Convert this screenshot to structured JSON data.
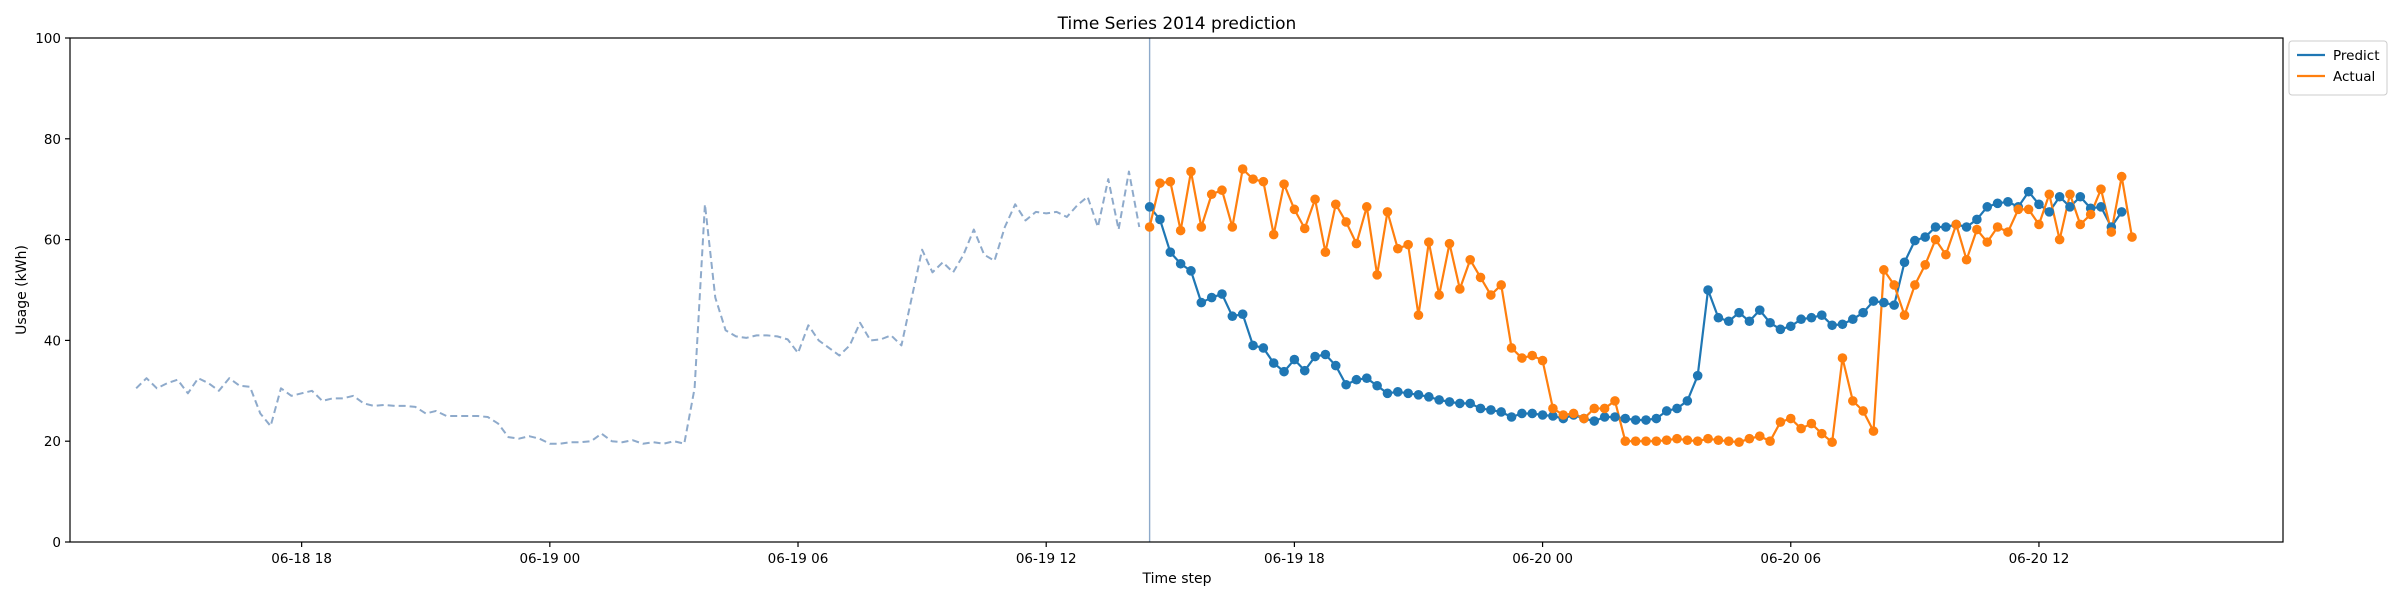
{
  "chart_data": {
    "type": "line",
    "title": "Time Series 2014 prediction",
    "xlabel": "Time step",
    "ylabel": "Usage (kWh)",
    "ylim": [
      0,
      100
    ],
    "yticks": [
      0,
      20,
      40,
      60,
      80,
      100
    ],
    "xlim": [
      "2014-06-18 12:24",
      "2014-06-20 17:54"
    ],
    "xticks": [
      {
        "label": "06-18 18",
        "t": "2014-06-18 18:00"
      },
      {
        "label": "06-19 00",
        "t": "2014-06-19 00:00"
      },
      {
        "label": "06-19 06",
        "t": "2014-06-19 06:00"
      },
      {
        "label": "06-19 12",
        "t": "2014-06-19 12:00"
      },
      {
        "label": "06-19 18",
        "t": "2014-06-19 18:00"
      },
      {
        "label": "06-20 00",
        "t": "2014-06-20 00:00"
      },
      {
        "label": "06-20 06",
        "t": "2014-06-20 06:00"
      },
      {
        "label": "06-20 12",
        "t": "2014-06-20 12:00"
      }
    ],
    "grid": false,
    "legend_position": "outside top-right",
    "forecast_start": "2014-06-19 14:30",
    "series": [
      {
        "name": "",
        "style": "dashed",
        "color": "#8eaacb",
        "start": "2014-06-18 14:00",
        "step_minutes": 15,
        "values": [
          30.5,
          32.5,
          30.5,
          31.5,
          32.2,
          29.5,
          32.5,
          31.5,
          30,
          32.5,
          31,
          30.8,
          25.5,
          23,
          30.5,
          29,
          29.5,
          30,
          28,
          28.5,
          28.5,
          29,
          27.5,
          27,
          27.2,
          27,
          27,
          26.8,
          25.5,
          26,
          25,
          25,
          25,
          25,
          24.8,
          23.5,
          20.8,
          20.5,
          21,
          20.5,
          19.5,
          19.5,
          19.8,
          19.8,
          20,
          21.5,
          20,
          19.8,
          20.2,
          19.5,
          19.8,
          19.5,
          20,
          19.5,
          30.5,
          67,
          48.5,
          42,
          40.8,
          40.5,
          41,
          41,
          40.8,
          40.2,
          37.5,
          43,
          40,
          38.5,
          37,
          39,
          43.5,
          40,
          40.2,
          41,
          39,
          48.5,
          58,
          53.5,
          55.5,
          53.5,
          57,
          62,
          57,
          55.8,
          62.5,
          67,
          63.8,
          65.5,
          65.2,
          65.5,
          64.5,
          66.8,
          68.5,
          62.5,
          72,
          62,
          73.5,
          62.5
        ]
      },
      {
        "name": "Predict",
        "style": "solid-markers",
        "color": "#1f77b4",
        "start": "2014-06-19 14:30",
        "step_minutes": 15,
        "values": [
          66.5,
          64,
          57.5,
          55.2,
          53.8,
          47.5,
          48.5,
          49.2,
          44.8,
          45.2,
          39,
          38.5,
          35.5,
          33.8,
          36.2,
          34,
          36.8,
          37.2,
          35,
          31.2,
          32.2,
          32.5,
          31,
          29.5,
          29.8,
          29.5,
          29.2,
          28.8,
          28.2,
          27.8,
          27.5,
          27.5,
          26.5,
          26.2,
          25.8,
          24.8,
          25.5,
          25.5,
          25.2,
          25,
          24.5,
          25.2,
          24.5,
          24,
          24.8,
          24.8,
          24.5,
          24.2,
          24.2,
          24.5,
          26,
          26.5,
          28,
          33,
          50,
          44.5,
          43.8,
          45.5,
          43.8,
          46,
          43.5,
          42.2,
          42.8,
          44.2,
          44.5,
          45,
          43,
          43.2,
          44.2,
          45.5,
          47.8,
          47.5,
          47,
          55.5,
          59.8,
          60.5,
          62.5,
          62.5,
          63,
          62.5,
          64,
          66.5,
          67.2,
          67.5,
          66.5,
          69.5,
          67,
          65.5,
          68.5,
          66.5,
          68.5,
          66.2,
          66.5,
          62.5,
          65.5
        ]
      },
      {
        "name": "Actual",
        "style": "solid-markers",
        "color": "#ff7f0e",
        "start": "2014-06-19 14:30",
        "step_minutes": 15,
        "values": [
          62.5,
          71.2,
          71.5,
          61.8,
          73.5,
          62.5,
          69,
          69.8,
          62.5,
          74,
          72,
          71.5,
          61,
          71,
          66,
          62.2,
          68,
          57.5,
          67,
          63.5,
          59.2,
          66.5,
          53,
          65.5,
          58.2,
          59,
          45,
          59.5,
          49,
          59.2,
          50.2,
          56,
          52.5,
          49,
          51,
          38.5,
          36.5,
          37,
          36,
          26.5,
          25.2,
          25.5,
          24.5,
          26.5,
          26.5,
          28,
          20,
          20,
          20,
          20,
          20.2,
          20.5,
          20.2,
          20,
          20.5,
          20.2,
          20,
          19.8,
          20.5,
          21,
          20,
          23.8,
          24.5,
          22.5,
          23.5,
          21.5,
          19.8,
          36.5,
          28,
          26,
          22,
          54,
          51,
          45,
          51,
          55,
          60,
          57,
          63,
          56,
          62,
          59.5,
          62.5,
          61.5,
          66,
          66,
          63,
          69,
          60,
          69,
          63,
          65,
          70,
          61.5,
          72.5,
          60.5
        ]
      }
    ]
  }
}
